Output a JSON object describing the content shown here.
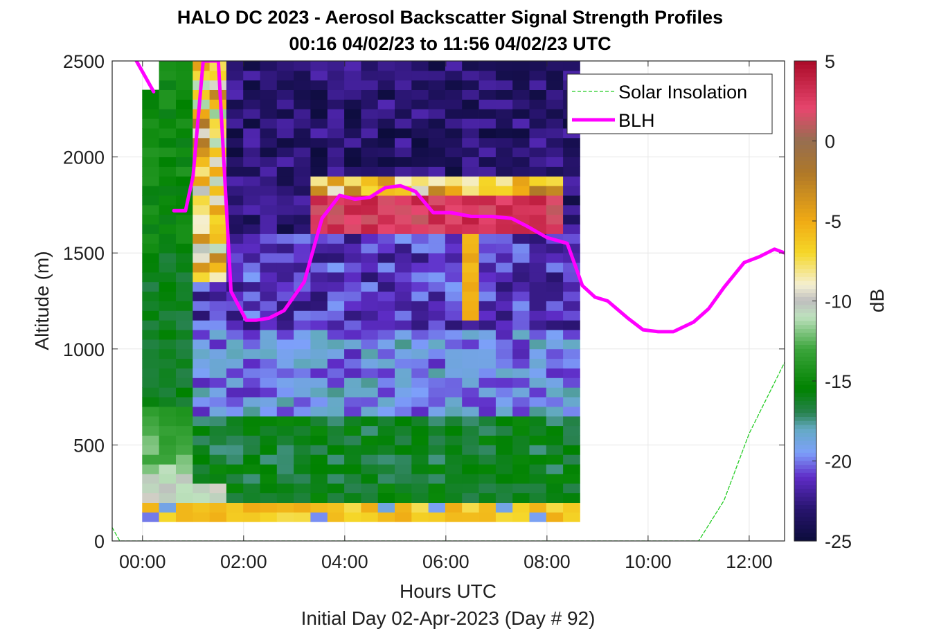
{
  "chart_data": {
    "type": "heatmap",
    "title": "HALO DC 2023 - Aerosol Backscatter Signal Strength Profiles",
    "subtitle": "00:16 04/02/23 to 11:56 04/02/23  UTC",
    "xlabel": "Hours UTC",
    "xlabel2": "Initial Day 02-Apr-2023 (Day # 92)",
    "ylabel": "Altitude (m)",
    "colorbar_label": "dB",
    "xlim": [
      -0.6,
      12.7
    ],
    "ylim": [
      0,
      2500
    ],
    "xticks": [
      0,
      2,
      4,
      6,
      8,
      10,
      12
    ],
    "xtick_labels": [
      "00:00",
      "02:00",
      "04:00",
      "06:00",
      "08:00",
      "10:00",
      "12:00"
    ],
    "yticks": [
      0,
      500,
      1000,
      1500,
      2000,
      2500
    ],
    "ytick_labels": [
      "0",
      "500",
      "1000",
      "1500",
      "2000",
      "2500"
    ],
    "clim": [
      -25,
      5
    ],
    "cticks": [
      5,
      0,
      -5,
      -10,
      -15,
      -20,
      -25
    ],
    "ctick_labels": [
      "5",
      "0",
      "-5",
      "-10",
      "-15",
      "-20",
      "-25"
    ],
    "heatmap": {
      "x_start": 0.16,
      "x_step": 0.333,
      "n_cols": 26,
      "y_start": 100,
      "y_step": 50,
      "n_rows": 48,
      "values_note": "dB"
    },
    "series": [
      {
        "name": "Solar Insolation",
        "color": "#22cc22",
        "style": "dashed",
        "x": [
          -0.6,
          -0.45,
          11.0,
          11.5,
          12.0,
          12.7
        ],
        "y": [
          70,
          0,
          0,
          210,
          560,
          930
        ]
      },
      {
        "name": "BLH",
        "color": "#ff00ff",
        "style": "solid",
        "segments": [
          {
            "x": [
              -0.12,
              0.22
            ],
            "y": [
              2500,
              2340
            ]
          },
          {
            "x": [
              0.62,
              0.85,
              1.0,
              1.2,
              1.5,
              1.75,
              2.05,
              2.25,
              2.5,
              2.8,
              3.2,
              3.55,
              3.9,
              4.2,
              4.5,
              4.8,
              5.1,
              5.4,
              5.75,
              6.1,
              6.5,
              6.9,
              7.3,
              7.6,
              8.0,
              8.4,
              8.7,
              8.95,
              9.2,
              9.6,
              9.9,
              10.2,
              10.5,
              10.9,
              11.2,
              11.5,
              11.9,
              12.2,
              12.5,
              12.7
            ],
            "y": [
              1720,
              1720,
              1900,
              2500,
              2500,
              1300,
              1150,
              1150,
              1160,
              1200,
              1350,
              1680,
              1800,
              1780,
              1790,
              1840,
              1850,
              1820,
              1710,
              1710,
              1690,
              1690,
              1680,
              1640,
              1580,
              1550,
              1330,
              1270,
              1250,
              1160,
              1100,
              1090,
              1090,
              1140,
              1210,
              1320,
              1450,
              1480,
              1520,
              1500
            ]
          }
        ]
      }
    ],
    "legend": {
      "position": "top-right",
      "entries": [
        "Solar Insolation",
        "BLH"
      ]
    },
    "grid": true,
    "colors": {
      "blh": "#ff00ff",
      "solar": "#22cc22",
      "axis": "#262626",
      "grid": "#e6e6e6"
    }
  }
}
